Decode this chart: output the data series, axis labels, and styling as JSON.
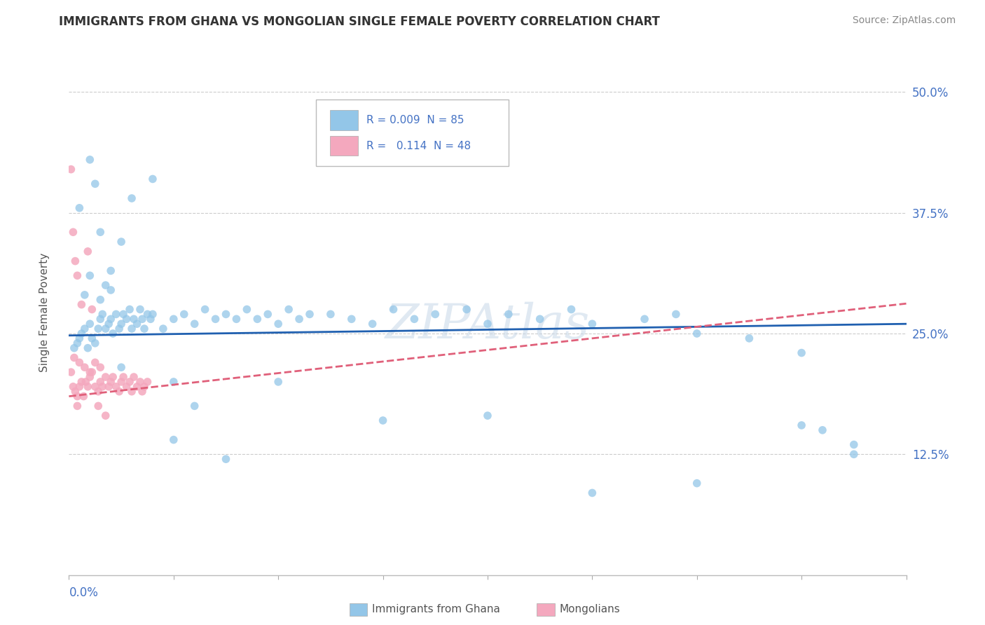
{
  "title": "IMMIGRANTS FROM GHANA VS MONGOLIAN SINGLE FEMALE POVERTY CORRELATION CHART",
  "source": "Source: ZipAtlas.com",
  "ylabel": "Single Female Poverty",
  "yticks": [
    0.0,
    0.125,
    0.25,
    0.375,
    0.5
  ],
  "ytick_labels": [
    "",
    "12.5%",
    "25.0%",
    "37.5%",
    "50.0%"
  ],
  "xmin": 0.0,
  "xmax": 0.08,
  "ymin": 0.0,
  "ymax": 0.55,
  "color_ghana": "#93c6e8",
  "color_mongolia": "#f4a8be",
  "color_ghana_line": "#2060b0",
  "color_mongolia_line": "#e0607a",
  "watermark": "ZIPAtlas",
  "ghana_x": [
    0.0005,
    0.0008,
    0.001,
    0.0012,
    0.0015,
    0.0018,
    0.002,
    0.0022,
    0.0025,
    0.0028,
    0.003,
    0.0032,
    0.0035,
    0.0038,
    0.004,
    0.0042,
    0.0045,
    0.0048,
    0.005,
    0.0052,
    0.0055,
    0.0058,
    0.006,
    0.0062,
    0.0065,
    0.0068,
    0.007,
    0.0072,
    0.0075,
    0.0078,
    0.008,
    0.009,
    0.01,
    0.011,
    0.012,
    0.013,
    0.014,
    0.015,
    0.016,
    0.017,
    0.018,
    0.019,
    0.02,
    0.021,
    0.022,
    0.023,
    0.025,
    0.027,
    0.029,
    0.031,
    0.033,
    0.035,
    0.038,
    0.04,
    0.042,
    0.045,
    0.048,
    0.05,
    0.055,
    0.058,
    0.06,
    0.065,
    0.07,
    0.072,
    0.075,
    0.001,
    0.002,
    0.003,
    0.004,
    0.005,
    0.002,
    0.0025,
    0.0015,
    0.003,
    0.0035,
    0.004,
    0.006,
    0.008,
    0.01,
    0.012,
    0.02,
    0.03,
    0.04,
    0.05,
    0.06,
    0.07,
    0.075,
    0.005,
    0.01,
    0.015
  ],
  "ghana_y": [
    0.235,
    0.24,
    0.245,
    0.25,
    0.255,
    0.235,
    0.26,
    0.245,
    0.24,
    0.255,
    0.265,
    0.27,
    0.255,
    0.26,
    0.265,
    0.25,
    0.27,
    0.255,
    0.26,
    0.27,
    0.265,
    0.275,
    0.255,
    0.265,
    0.26,
    0.275,
    0.265,
    0.255,
    0.27,
    0.265,
    0.27,
    0.255,
    0.265,
    0.27,
    0.26,
    0.275,
    0.265,
    0.27,
    0.265,
    0.275,
    0.265,
    0.27,
    0.26,
    0.275,
    0.265,
    0.27,
    0.27,
    0.265,
    0.26,
    0.275,
    0.265,
    0.27,
    0.275,
    0.26,
    0.27,
    0.265,
    0.275,
    0.26,
    0.265,
    0.27,
    0.25,
    0.245,
    0.23,
    0.15,
    0.135,
    0.38,
    0.31,
    0.285,
    0.295,
    0.345,
    0.43,
    0.405,
    0.29,
    0.355,
    0.3,
    0.315,
    0.39,
    0.41,
    0.2,
    0.175,
    0.2,
    0.16,
    0.165,
    0.085,
    0.095,
    0.155,
    0.125,
    0.215,
    0.14,
    0.12
  ],
  "mongolia_x": [
    0.0002,
    0.0004,
    0.0006,
    0.0008,
    0.001,
    0.0012,
    0.0014,
    0.0016,
    0.0018,
    0.002,
    0.0022,
    0.0025,
    0.0028,
    0.003,
    0.0032,
    0.0035,
    0.0038,
    0.004,
    0.0042,
    0.0045,
    0.0048,
    0.005,
    0.0052,
    0.0055,
    0.0058,
    0.006,
    0.0062,
    0.0065,
    0.0068,
    0.007,
    0.0072,
    0.0075,
    0.0005,
    0.001,
    0.0015,
    0.002,
    0.0025,
    0.003,
    0.0008,
    0.0012,
    0.0018,
    0.0022,
    0.0028,
    0.0035,
    0.0002,
    0.0004,
    0.0006,
    0.0008
  ],
  "mongolia_y": [
    0.21,
    0.195,
    0.19,
    0.185,
    0.195,
    0.2,
    0.185,
    0.2,
    0.195,
    0.205,
    0.21,
    0.195,
    0.19,
    0.2,
    0.195,
    0.205,
    0.195,
    0.2,
    0.205,
    0.195,
    0.19,
    0.2,
    0.205,
    0.195,
    0.2,
    0.19,
    0.205,
    0.195,
    0.2,
    0.19,
    0.195,
    0.2,
    0.225,
    0.22,
    0.215,
    0.21,
    0.22,
    0.215,
    0.31,
    0.28,
    0.335,
    0.275,
    0.175,
    0.165,
    0.42,
    0.355,
    0.325,
    0.175
  ]
}
